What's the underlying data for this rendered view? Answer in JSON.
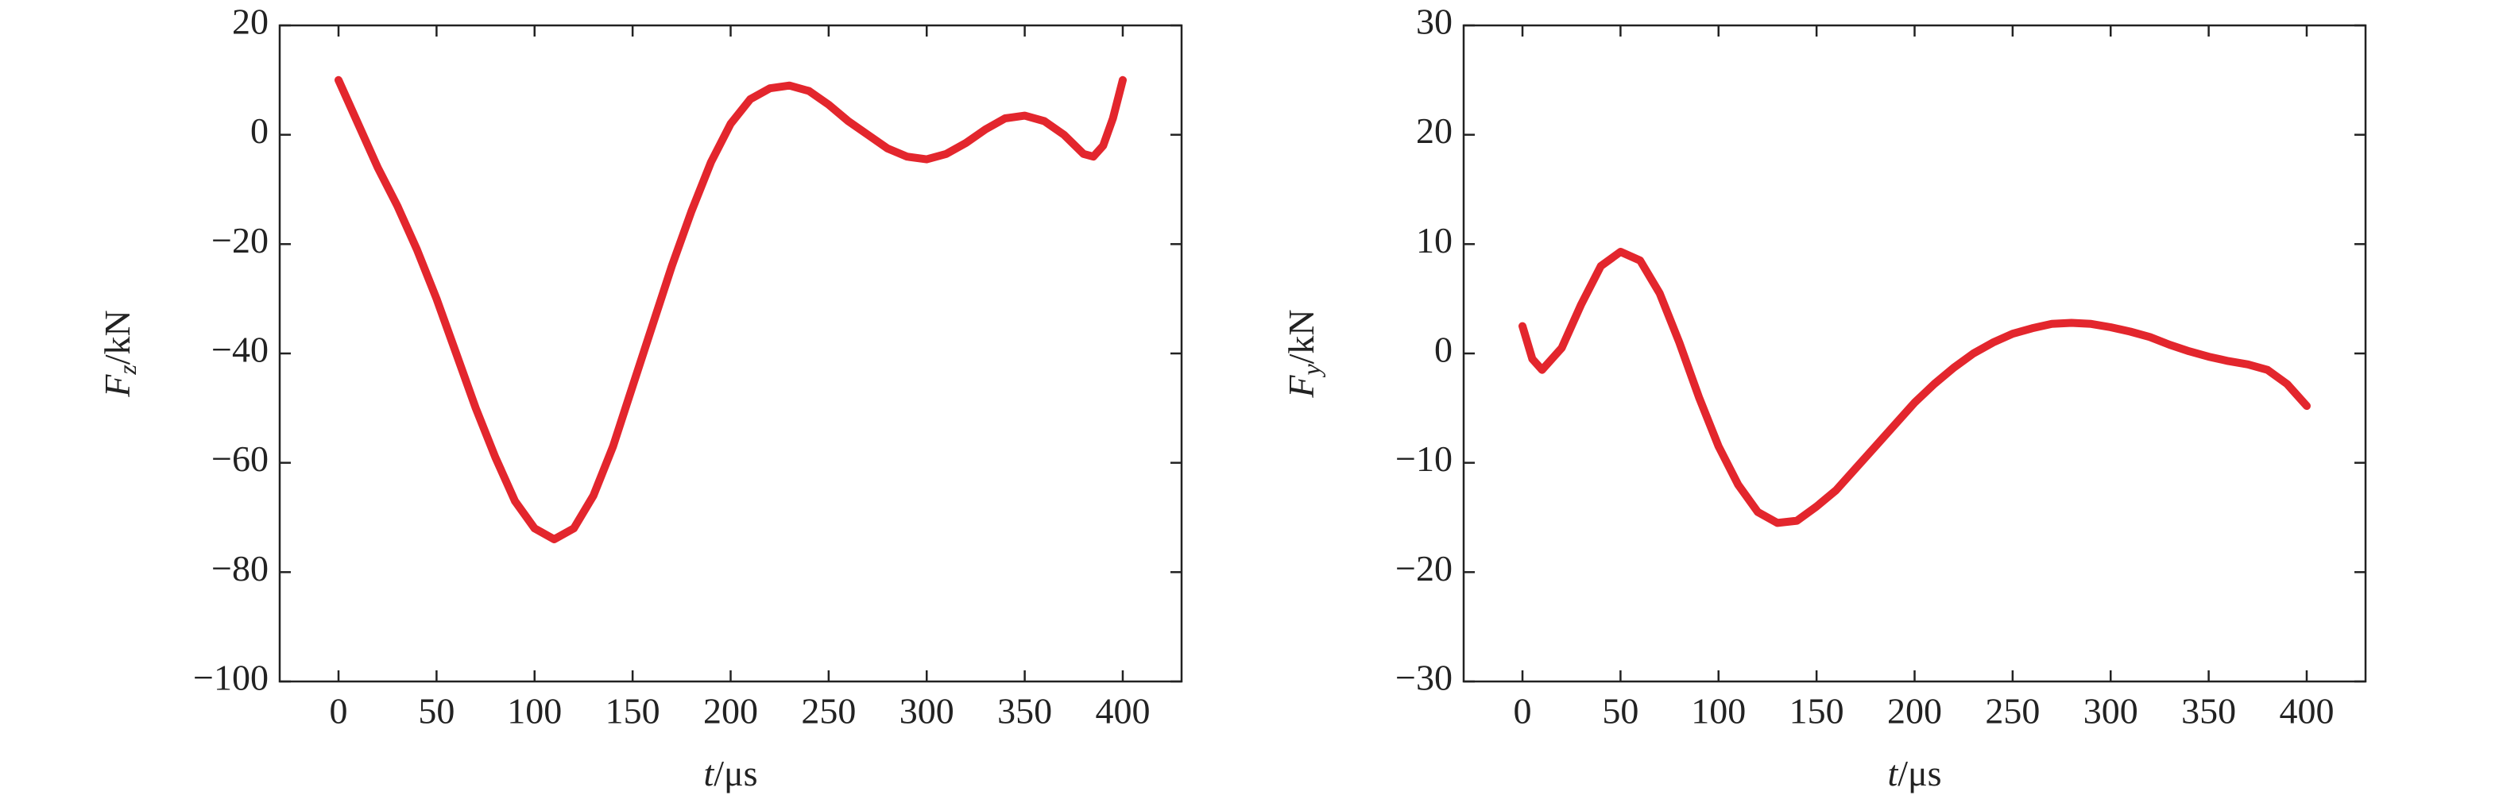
{
  "chart_data": [
    {
      "type": "line",
      "xlabel": [
        "t",
        "/μs"
      ],
      "ylabel": [
        "F",
        "z",
        "/kN"
      ],
      "xlim": [
        -30,
        430
      ],
      "xticks": [
        0,
        50,
        100,
        150,
        200,
        250,
        300,
        350,
        400
      ],
      "ylim": [
        -100,
        20
      ],
      "yticks": [
        {
          "value": -100,
          "label": "−100"
        },
        {
          "value": -80,
          "label": "−80"
        },
        {
          "value": -60,
          "label": "−60"
        },
        {
          "value": -40,
          "label": "−40"
        },
        {
          "value": -20,
          "label": "−20"
        },
        0,
        20
      ],
      "x": [
        0,
        10,
        20,
        30,
        40,
        50,
        60,
        70,
        80,
        90,
        100,
        110,
        120,
        130,
        140,
        150,
        160,
        170,
        180,
        190,
        200,
        210,
        220,
        230,
        240,
        250,
        260,
        270,
        280,
        290,
        300,
        310,
        320,
        330,
        340,
        350,
        360,
        370,
        380,
        385,
        390,
        395,
        400
      ],
      "series": [
        {
          "color": "#e3262d",
          "values": [
            10,
            2,
            -6,
            -13,
            -21,
            -30,
            -40,
            -50,
            -59,
            -67,
            -72,
            -74,
            -72,
            -66,
            -57,
            -46,
            -35,
            -24,
            -14,
            -5,
            2,
            6.5,
            8.5,
            9,
            8,
            5.5,
            2.5,
            0,
            -2.5,
            -4,
            -4.5,
            -3.5,
            -1.5,
            1,
            3,
            3.5,
            2.5,
            0,
            -3.5,
            -4,
            -2,
            3,
            10
          ]
        }
      ]
    },
    {
      "type": "line",
      "xlabel": [
        "t",
        "/μs"
      ],
      "ylabel": [
        "F",
        "y",
        "/kN"
      ],
      "xlim": [
        -30,
        430
      ],
      "xticks": [
        0,
        50,
        100,
        150,
        200,
        250,
        300,
        350,
        400
      ],
      "ylim": [
        -30,
        30
      ],
      "yticks": [
        {
          "value": -30,
          "label": "−30"
        },
        {
          "value": -20,
          "label": "−20"
        },
        {
          "value": -10,
          "label": "−10"
        },
        0,
        10,
        20,
        30
      ],
      "x": [
        0,
        5,
        10,
        20,
        30,
        40,
        50,
        60,
        70,
        80,
        90,
        100,
        110,
        120,
        130,
        140,
        150,
        160,
        170,
        180,
        190,
        200,
        210,
        220,
        230,
        240,
        250,
        260,
        270,
        280,
        290,
        300,
        310,
        320,
        330,
        340,
        350,
        360,
        370,
        380,
        390,
        400
      ],
      "series": [
        {
          "color": "#e3262d",
          "values": [
            2.5,
            -0.5,
            -1.5,
            0.5,
            4.5,
            8,
            9.3,
            8.5,
            5.5,
            1,
            -4,
            -8.5,
            -12,
            -14.5,
            -15.5,
            -15.3,
            -14,
            -12.5,
            -10.5,
            -8.5,
            -6.5,
            -4.5,
            -2.8,
            -1.3,
            0,
            1,
            1.8,
            2.3,
            2.7,
            2.8,
            2.7,
            2.4,
            2,
            1.5,
            0.8,
            0.2,
            -0.3,
            -0.7,
            -1,
            -1.5,
            -2.8,
            -4.8
          ]
        }
      ]
    }
  ]
}
